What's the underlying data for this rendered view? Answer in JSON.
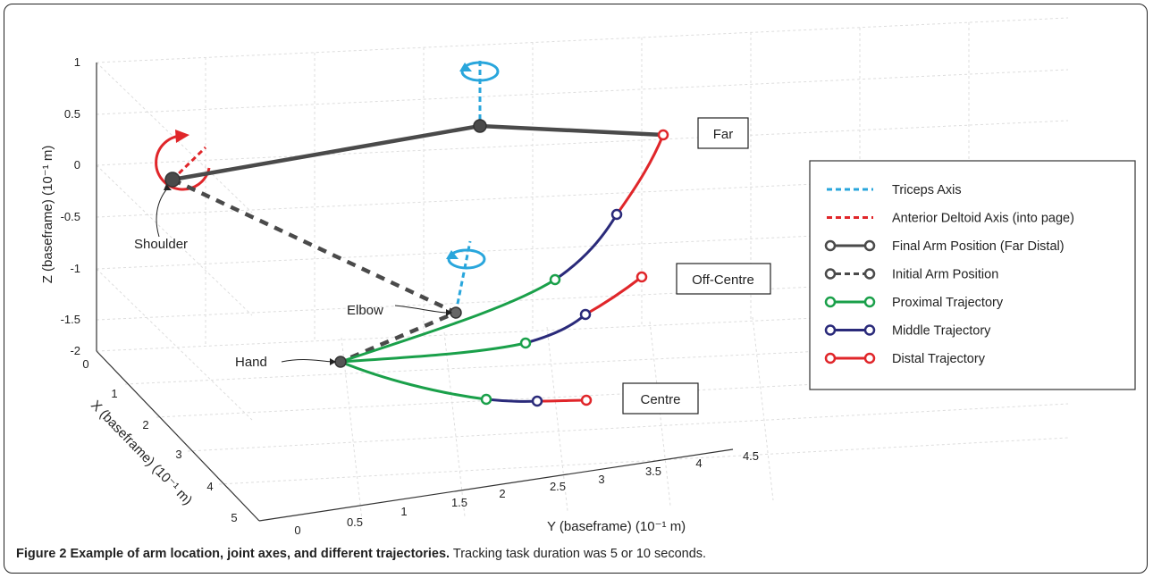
{
  "figure": {
    "caption_label": "Figure 2",
    "caption_title": "Example of arm location, joint axes, and different trajectories.",
    "caption_text": "Tracking task duration was 5 or 10 seconds."
  },
  "chart_data": {
    "type": "line",
    "projection": "3d",
    "xlabel": "X (baseframe) (10⁻¹ m)",
    "ylabel": "Y (baseframe) (10⁻¹ m)",
    "zlabel": "Z (baseframe) (10⁻¹ m)",
    "xlim": [
      0,
      5
    ],
    "ylim": [
      0,
      4.5
    ],
    "zlim": [
      -2,
      1
    ],
    "xticks": [
      "0",
      "1",
      "2",
      "3",
      "4",
      "5"
    ],
    "yticks": [
      "0",
      "0.5",
      "1",
      "1.5",
      "2",
      "2.5",
      "3",
      "3.5",
      "4",
      "4.5"
    ],
    "zticks": [
      "1",
      "0.5",
      "0",
      "-0.5",
      "-1",
      "-1.5",
      "-2"
    ],
    "grid": true,
    "legend_position": "right",
    "legend": [
      {
        "label": "Triceps Axis",
        "color": "#29a6dc",
        "style": "dashed",
        "marker": "none"
      },
      {
        "label": "Anterior Deltoid Axis (into page)",
        "color": "#e0262a",
        "style": "dashed",
        "marker": "none"
      },
      {
        "label": "Final Arm Position (Far Distal)",
        "color": "#4a4a4a",
        "style": "solid",
        "marker": "circle"
      },
      {
        "label": "Initial Arm Position",
        "color": "#4a4a4a",
        "style": "dashed",
        "marker": "circle"
      },
      {
        "label": "Proximal Trajectory",
        "color": "#1aa04a",
        "style": "solid",
        "marker": "circle"
      },
      {
        "label": "Middle Trajectory",
        "color": "#2a2a7a",
        "style": "solid",
        "marker": "circle"
      },
      {
        "label": "Distal Trajectory",
        "color": "#e0262a",
        "style": "solid",
        "marker": "circle"
      }
    ],
    "point_labels": [
      "Shoulder",
      "Elbow",
      "Hand"
    ],
    "target_labels": [
      "Far",
      "Off-Centre",
      "Centre"
    ],
    "colors": {
      "proximal": "#1aa04a",
      "middle": "#2a2a7a",
      "distal": "#e0262a",
      "arm": "#4a4a4a",
      "triceps_axis": "#29a6dc",
      "deltoid_axis": "#e0262a"
    }
  }
}
